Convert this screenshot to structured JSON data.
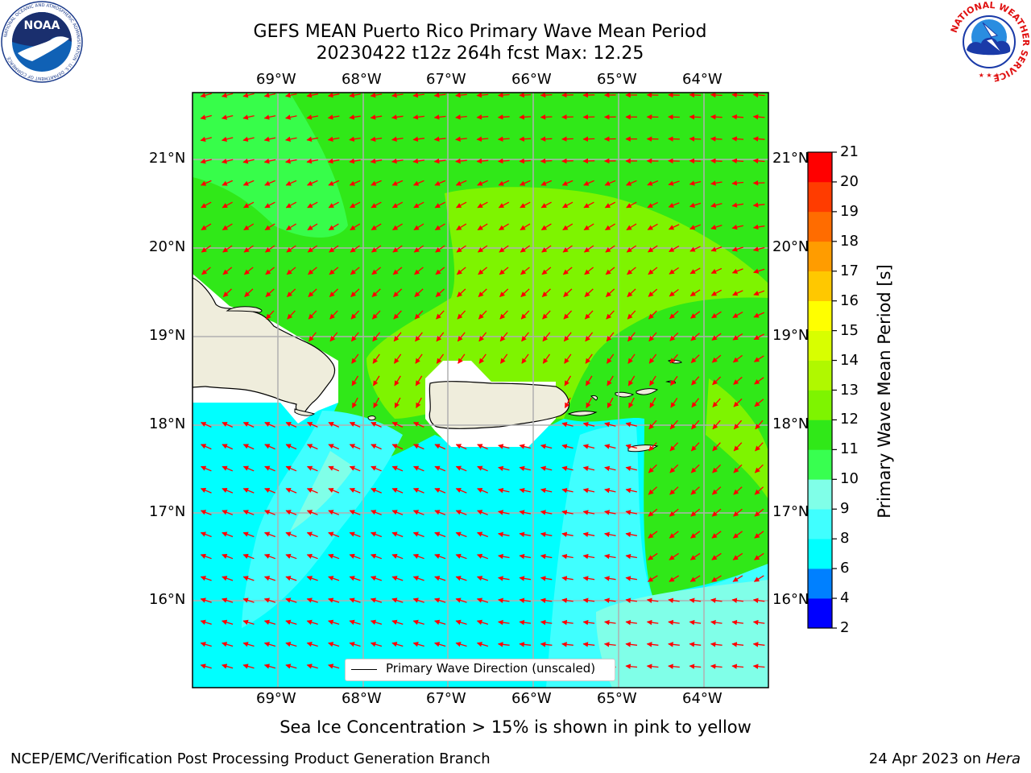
{
  "title": {
    "line1": "GEFS MEAN Puerto Rico Primary Wave Mean Period",
    "line2": "20230422 t12z 264h fcst   Max: 12.25"
  },
  "map": {
    "lon_ticks": [
      "69°W",
      "68°W",
      "67°W",
      "66°W",
      "65°W",
      "64°W"
    ],
    "lat_ticks": [
      "21°N",
      "20°N",
      "19°N",
      "18°N",
      "17°N",
      "16°N"
    ],
    "legend_label": "Primary Wave Direction (unscaled)",
    "arrow_color": "#ff0000",
    "land_color": "#efeddc"
  },
  "colorbar": {
    "label": "Primary Wave Mean Period [s]",
    "ticks": [
      "2",
      "4",
      "6",
      "8",
      "9",
      "10",
      "11",
      "12",
      "13",
      "14",
      "15",
      "16",
      "17",
      "18",
      "19",
      "20",
      "21"
    ],
    "colors": [
      "#0000ff",
      "#0080ff",
      "#00ffff",
      "#40ffff",
      "#80ffe8",
      "#38ff50",
      "#30e818",
      "#7ef400",
      "#b0f800",
      "#d8ff00",
      "#ffff00",
      "#ffc800",
      "#ff9c00",
      "#ff6c00",
      "#ff3c00",
      "#ff0000"
    ]
  },
  "notes": {
    "sea_ice": "Sea Ice Concentration > 15% is shown in pink to yellow"
  },
  "footer": {
    "left": "NCEP/EMC/Verification Post Processing Product Generation Branch",
    "right_prefix": "24 Apr 2023 on ",
    "right_host": "Hera"
  },
  "logos": {
    "noaa": "NOAA",
    "noaa_ring": "NATIONAL OCEANIC AND ATMOSPHERIC ADMINISTRATION · U.S. DEPARTMENT OF COMMERCE",
    "nws_ring": "NATIONAL WEATHER SERVICE"
  }
}
